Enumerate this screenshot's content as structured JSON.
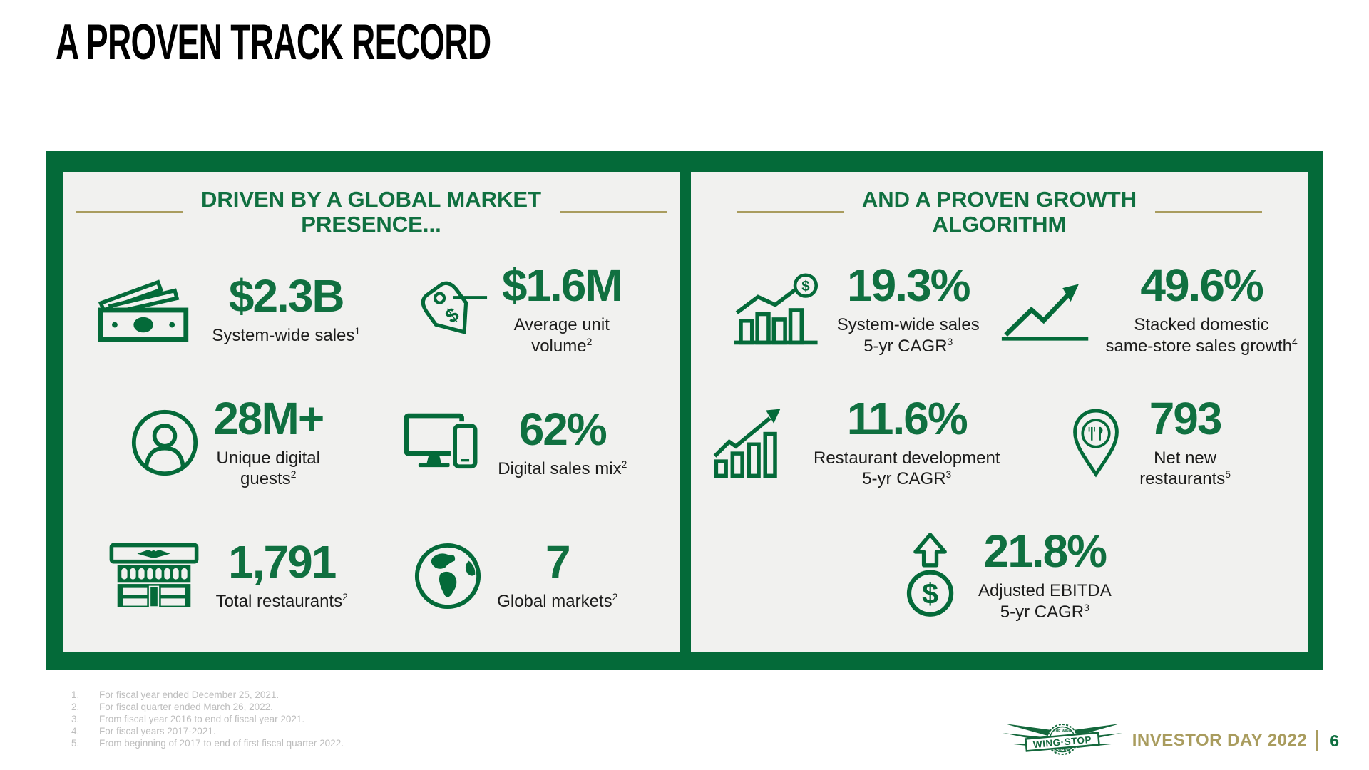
{
  "slide": {
    "title": "A PROVEN TRACK RECORD",
    "page_number": "6",
    "footer_brand": "INVESTOR DAY 2022",
    "logo_text": "WING·STOP",
    "logo_top_text": "THE WING",
    "logo_bottom_text": "EXPERTS"
  },
  "colors": {
    "green": "#046A39",
    "green_number": "#107040",
    "gold": "#A99C5E",
    "panel_background": "#F1F1EF",
    "label_text": "#1C1C1B",
    "footnote_gray": "#BDBDBD"
  },
  "panels": [
    {
      "id": "global-market-presence",
      "header_lines": [
        "DRIVEN BY A GLOBAL MARKET",
        "PRESENCE..."
      ],
      "stats": [
        {
          "id": "system-wide-sales",
          "icon": "cash-bills-icon",
          "value": "$2.3B",
          "label_lines": [
            "System-wide sales"
          ],
          "sup": "1"
        },
        {
          "id": "average-unit-volume",
          "icon": "price-tag-icon",
          "value": "$1.6M",
          "label_lines": [
            "Average unit",
            "volume"
          ],
          "sup": "2"
        },
        {
          "id": "unique-digital-guests",
          "icon": "person-circle-icon",
          "value": "28M+",
          "label_lines": [
            "Unique digital",
            "guests"
          ],
          "sup": "2"
        },
        {
          "id": "digital-sales-mix",
          "icon": "devices-icon",
          "value": "62%",
          "label_lines": [
            "Digital sales mix"
          ],
          "sup": "2"
        },
        {
          "id": "total-restaurants",
          "icon": "storefront-icon",
          "value": "1,791",
          "label_lines": [
            "Total restaurants"
          ],
          "sup": "2"
        },
        {
          "id": "global-markets",
          "icon": "globe-icon",
          "value": "7",
          "label_lines": [
            "Global markets"
          ],
          "sup": "2"
        }
      ]
    },
    {
      "id": "proven-growth-algorithm",
      "header_lines": [
        "AND A PROVEN GROWTH",
        "ALGORITHM"
      ],
      "stats": [
        {
          "id": "system-wide-sales-cagr",
          "icon": "bar-chart-dollar-icon",
          "value": "19.3%",
          "label_lines": [
            "System-wide sales",
            "5-yr CAGR"
          ],
          "sup": "3"
        },
        {
          "id": "stacked-same-store-sales-growth",
          "icon": "growth-arrow-icon",
          "value": "49.6%",
          "label_lines": [
            "Stacked domestic",
            "same-store sales growth"
          ],
          "sup": "4"
        },
        {
          "id": "restaurant-development-cagr",
          "icon": "bar-chart-arrow-icon",
          "value": "11.6%",
          "label_lines": [
            "Restaurant development",
            "5-yr CAGR"
          ],
          "sup": "3"
        },
        {
          "id": "net-new-restaurants",
          "icon": "map-pin-utensils-icon",
          "value": "793",
          "label_lines": [
            "Net new",
            "restaurants"
          ],
          "sup": "5"
        },
        {
          "id": "adjusted-ebitda-cagr",
          "icon": "dollar-up-arrow-icon",
          "value": "21.8%",
          "label_lines": [
            "Adjusted EBITDA",
            "5-yr CAGR"
          ],
          "sup": "3",
          "span2": true
        }
      ]
    }
  ],
  "footnotes": [
    {
      "num": "1.",
      "text": "For fiscal year ended December 25, 2021."
    },
    {
      "num": "2.",
      "text": "For fiscal quarter ended March 26, 2022."
    },
    {
      "num": "3.",
      "text": "From fiscal year 2016 to end of fiscal year 2021."
    },
    {
      "num": "4.",
      "text": "For fiscal years 2017-2021."
    },
    {
      "num": "5.",
      "text": "From beginning of 2017 to end of first fiscal quarter 2022."
    }
  ]
}
